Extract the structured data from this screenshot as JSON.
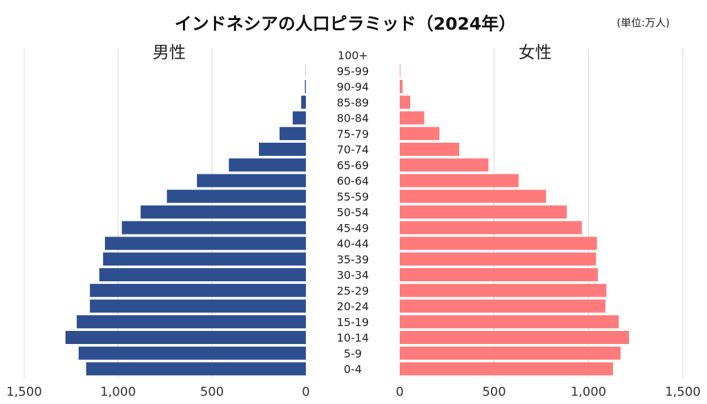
{
  "chart_data": {
    "type": "bar",
    "title": "インドネシアの人口ピラミッド（2024年）",
    "unit": "(単位:万人)",
    "left_label": "男性",
    "right_label": "女性",
    "categories": [
      "100+",
      "95-99",
      "90-94",
      "85-89",
      "80-84",
      "75-79",
      "70-74",
      "65-69",
      "60-64",
      "55-59",
      "50-54",
      "45-49",
      "40-44",
      "35-39",
      "30-34",
      "25-29",
      "20-24",
      "15-19",
      "10-14",
      "5-9",
      "0-4"
    ],
    "series": [
      {
        "name": "男性",
        "color": "#2e4f8f",
        "values": [
          0,
          1,
          5,
          25,
          70,
          140,
          250,
          410,
          580,
          740,
          880,
          980,
          1070,
          1080,
          1100,
          1150,
          1150,
          1220,
          1280,
          1210,
          1170
        ]
      },
      {
        "name": "女性",
        "color": "#ff7b7b",
        "values": [
          0,
          3,
          15,
          55,
          130,
          210,
          315,
          470,
          630,
          775,
          885,
          965,
          1045,
          1040,
          1050,
          1095,
          1090,
          1160,
          1215,
          1170,
          1130
        ]
      }
    ],
    "xlim": [
      0,
      1500
    ],
    "ticks": [
      "1,500",
      "1,000",
      "500",
      "0"
    ],
    "tick_values": [
      1500,
      1000,
      500,
      0
    ],
    "grid": true,
    "legend": "none"
  }
}
